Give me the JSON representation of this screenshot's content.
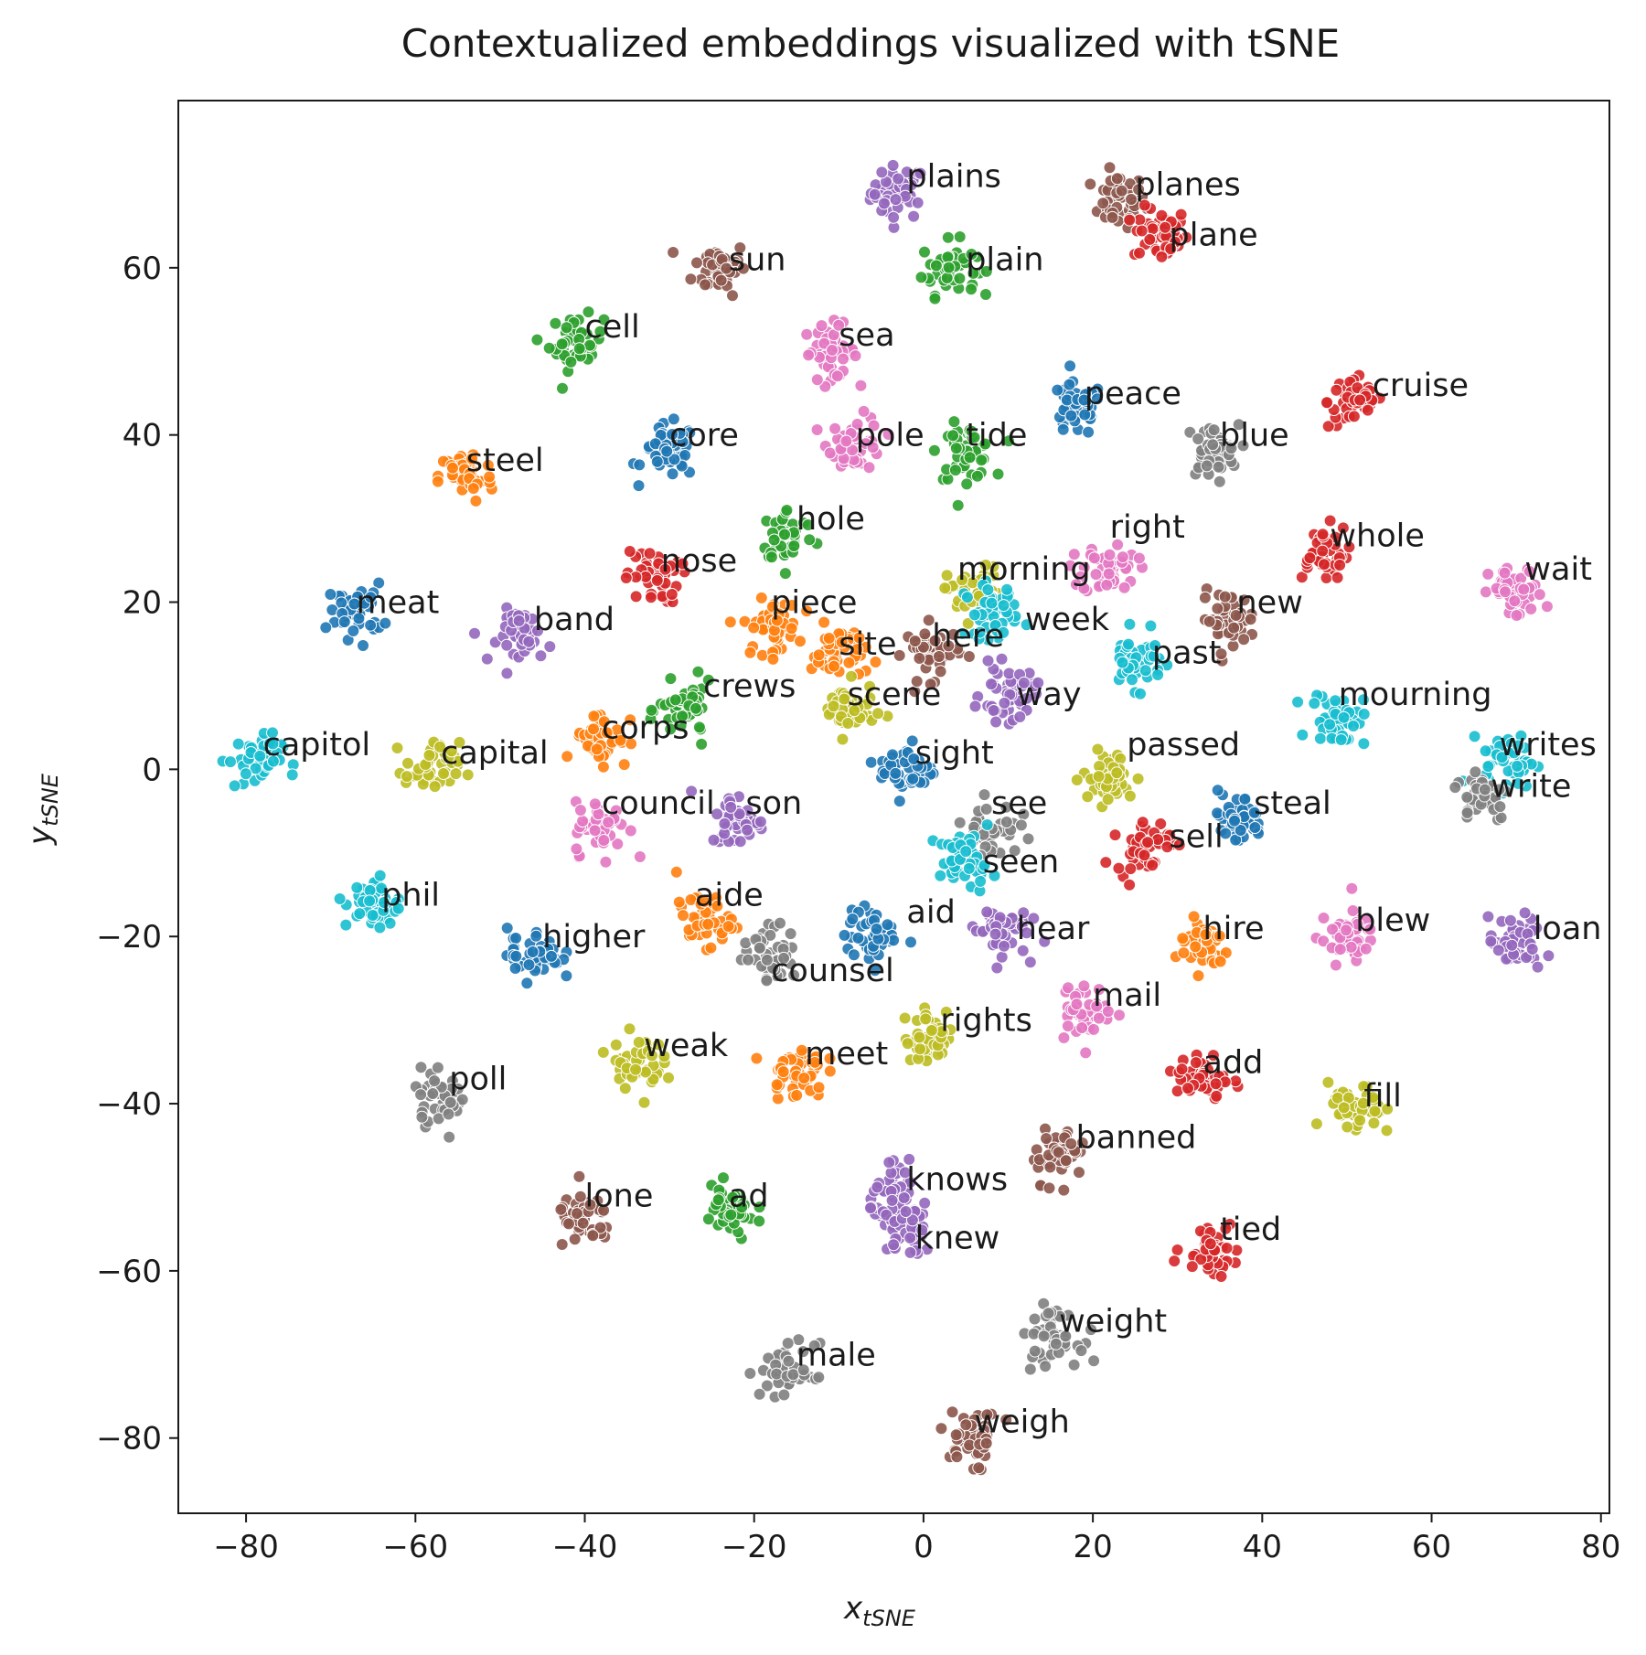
{
  "chart_data": {
    "type": "scatter",
    "title": "Contextualized embeddings visualized with tSNE",
    "xlabel": {
      "base": "x",
      "sub": "tSNE"
    },
    "ylabel": {
      "base": "y",
      "sub": "tSNE"
    },
    "xlim": [
      -88,
      81
    ],
    "ylim": [
      -89,
      80
    ],
    "xticks": [
      -80,
      -60,
      -40,
      -20,
      0,
      20,
      40,
      60,
      80
    ],
    "yticks": [
      -80,
      -60,
      -40,
      -20,
      0,
      20,
      40,
      60
    ],
    "grid": false,
    "legend": "none",
    "palette": [
      "#1f77b4",
      "#ff7f0e",
      "#2ca02c",
      "#d62728",
      "#9467bd",
      "#8c564b",
      "#e377c2",
      "#7f7f7f",
      "#bcbd22",
      "#17becf"
    ],
    "series": [
      {
        "word": "plains",
        "x": -3,
        "y": 69,
        "lx": -2,
        "ly": 71,
        "color": "#9467bd"
      },
      {
        "word": "planes",
        "x": 23,
        "y": 68,
        "lx": 25,
        "ly": 70,
        "color": "#8c564b"
      },
      {
        "word": "plane",
        "x": 28,
        "y": 64,
        "lx": 29,
        "ly": 64,
        "color": "#d62728"
      },
      {
        "word": "sun",
        "x": -24,
        "y": 60,
        "lx": -23,
        "ly": 61,
        "color": "#8c564b"
      },
      {
        "word": "plain",
        "x": 3,
        "y": 60,
        "lx": 5,
        "ly": 61,
        "color": "#2ca02c"
      },
      {
        "word": "cell",
        "x": -41,
        "y": 51,
        "lx": -40,
        "ly": 53,
        "color": "#2ca02c"
      },
      {
        "word": "sea",
        "x": -11,
        "y": 50,
        "lx": -10,
        "ly": 52,
        "color": "#e377c2"
      },
      {
        "word": "cruise",
        "x": 51,
        "y": 44,
        "lx": 53,
        "ly": 46,
        "color": "#d62728"
      },
      {
        "word": "peace",
        "x": 18,
        "y": 43,
        "lx": 19,
        "ly": 45,
        "color": "#1f77b4"
      },
      {
        "word": "core",
        "x": -30,
        "y": 38,
        "lx": -30,
        "ly": 40,
        "color": "#1f77b4"
      },
      {
        "word": "pole",
        "x": -8,
        "y": 39,
        "lx": -8,
        "ly": 40,
        "color": "#e377c2"
      },
      {
        "word": "tide",
        "x": 5,
        "y": 38,
        "lx": 5,
        "ly": 40,
        "color": "#2ca02c"
      },
      {
        "word": "blue",
        "x": 34,
        "y": 38,
        "lx": 35,
        "ly": 40,
        "color": "#7f7f7f"
      },
      {
        "word": "steel",
        "x": -54,
        "y": 35,
        "lx": -54,
        "ly": 37,
        "color": "#ff7f0e"
      },
      {
        "word": "hole",
        "x": -16,
        "y": 28,
        "lx": -15,
        "ly": 30,
        "color": "#2ca02c"
      },
      {
        "word": "right",
        "x": 22,
        "y": 24,
        "lx": 22,
        "ly": 29,
        "color": "#e377c2"
      },
      {
        "word": "whole",
        "x": 47,
        "y": 26,
        "lx": 48,
        "ly": 28,
        "color": "#d62728"
      },
      {
        "word": "nose",
        "x": -32,
        "y": 23,
        "lx": -31,
        "ly": 25,
        "color": "#d62728"
      },
      {
        "word": "morning",
        "x": 6,
        "y": 21,
        "lx": 4,
        "ly": 24,
        "color": "#bcbd22"
      },
      {
        "word": "wait",
        "x": 70,
        "y": 21,
        "lx": 71,
        "ly": 24,
        "color": "#e377c2"
      },
      {
        "word": "meat",
        "x": -67,
        "y": 19,
        "lx": -67,
        "ly": 20,
        "color": "#1f77b4"
      },
      {
        "word": "piece",
        "x": -18,
        "y": 17,
        "lx": -18,
        "ly": 20,
        "color": "#ff7f0e"
      },
      {
        "word": "new",
        "x": 36,
        "y": 18,
        "lx": 37,
        "ly": 20,
        "color": "#8c564b"
      },
      {
        "word": "band",
        "x": -47,
        "y": 16,
        "lx": -46,
        "ly": 18,
        "color": "#9467bd"
      },
      {
        "word": "week",
        "x": 8,
        "y": 19,
        "lx": 12,
        "ly": 18,
        "color": "#17becf"
      },
      {
        "word": "here",
        "x": 1,
        "y": 14,
        "lx": 1,
        "ly": 16,
        "color": "#8c564b"
      },
      {
        "word": "site",
        "x": -10,
        "y": 14,
        "lx": -10,
        "ly": 15,
        "color": "#ff7f0e"
      },
      {
        "word": "past",
        "x": 25,
        "y": 13,
        "lx": 27,
        "ly": 14,
        "color": "#17becf"
      },
      {
        "word": "crews",
        "x": -28,
        "y": 7,
        "lx": -26,
        "ly": 10,
        "color": "#2ca02c"
      },
      {
        "word": "scene",
        "x": -9,
        "y": 7,
        "lx": -9,
        "ly": 9,
        "color": "#bcbd22"
      },
      {
        "word": "way",
        "x": 10,
        "y": 9,
        "lx": 11,
        "ly": 9,
        "color": "#9467bd"
      },
      {
        "word": "mourning",
        "x": 49,
        "y": 6,
        "lx": 49,
        "ly": 9,
        "color": "#17becf"
      },
      {
        "word": "corps",
        "x": -38,
        "y": 4,
        "lx": -38,
        "ly": 5,
        "color": "#ff7f0e"
      },
      {
        "word": "capitol",
        "x": -79,
        "y": 1,
        "lx": -78,
        "ly": 3,
        "color": "#17becf"
      },
      {
        "word": "capital",
        "x": -58,
        "y": 0,
        "lx": -57,
        "ly": 2,
        "color": "#bcbd22"
      },
      {
        "word": "passed",
        "x": 22,
        "y": -1,
        "lx": 24,
        "ly": 3,
        "color": "#bcbd22"
      },
      {
        "word": "writes",
        "x": 69,
        "y": 1,
        "lx": 68,
        "ly": 3,
        "color": "#17becf"
      },
      {
        "word": "sight",
        "x": -2,
        "y": 0,
        "lx": -1,
        "ly": 2,
        "color": "#1f77b4"
      },
      {
        "word": "write",
        "x": 66,
        "y": -3,
        "lx": 67,
        "ly": -2,
        "color": "#7f7f7f"
      },
      {
        "word": "council",
        "x": -38,
        "y": -7,
        "lx": -38,
        "ly": -4,
        "color": "#e377c2"
      },
      {
        "word": "son",
        "x": -22,
        "y": -6,
        "lx": -21,
        "ly": -4,
        "color": "#9467bd"
      },
      {
        "word": "see",
        "x": 8,
        "y": -7,
        "lx": 8,
        "ly": -4,
        "color": "#7f7f7f"
      },
      {
        "word": "steal",
        "x": 37,
        "y": -6,
        "lx": 39,
        "ly": -4,
        "color": "#1f77b4"
      },
      {
        "word": "sell",
        "x": 26,
        "y": -9,
        "lx": 29,
        "ly": -8,
        "color": "#d62728"
      },
      {
        "word": "seen",
        "x": 5,
        "y": -11,
        "lx": 7,
        "ly": -11,
        "color": "#17becf"
      },
      {
        "word": "phil",
        "x": -65,
        "y": -16,
        "lx": -64,
        "ly": -15,
        "color": "#17becf"
      },
      {
        "word": "aide",
        "x": -26,
        "y": -18,
        "lx": -27,
        "ly": -15,
        "color": "#ff7f0e"
      },
      {
        "word": "aid",
        "x": -6,
        "y": -20,
        "lx": -2,
        "ly": -17,
        "color": "#1f77b4"
      },
      {
        "word": "hear",
        "x": 9,
        "y": -19,
        "lx": 11,
        "ly": -19,
        "color": "#9467bd"
      },
      {
        "word": "hire",
        "x": 33,
        "y": -21,
        "lx": 33,
        "ly": -19,
        "color": "#ff7f0e"
      },
      {
        "word": "blew",
        "x": 50,
        "y": -20,
        "lx": 51,
        "ly": -18,
        "color": "#e377c2"
      },
      {
        "word": "loan",
        "x": 70,
        "y": -21,
        "lx": 72,
        "ly": -19,
        "color": "#9467bd"
      },
      {
        "word": "higher",
        "x": -46,
        "y": -22,
        "lx": -45,
        "ly": -20,
        "color": "#1f77b4"
      },
      {
        "word": "counsel",
        "x": -18,
        "y": -22,
        "lx": -18,
        "ly": -24,
        "color": "#7f7f7f"
      },
      {
        "word": "mail",
        "x": 19,
        "y": -29,
        "lx": 20,
        "ly": -27,
        "color": "#e377c2"
      },
      {
        "word": "rights",
        "x": 1,
        "y": -32,
        "lx": 2,
        "ly": -30,
        "color": "#bcbd22"
      },
      {
        "word": "weak",
        "x": -34,
        "y": -35,
        "lx": -33,
        "ly": -33,
        "color": "#bcbd22"
      },
      {
        "word": "meet",
        "x": -15,
        "y": -36,
        "lx": -14,
        "ly": -34,
        "color": "#ff7f0e"
      },
      {
        "word": "add",
        "x": 33,
        "y": -37,
        "lx": 33,
        "ly": -35,
        "color": "#d62728"
      },
      {
        "word": "poll",
        "x": -57,
        "y": -39,
        "lx": -56,
        "ly": -37,
        "color": "#7f7f7f"
      },
      {
        "word": "fill",
        "x": 51,
        "y": -41,
        "lx": 52,
        "ly": -39,
        "color": "#bcbd22"
      },
      {
        "word": "banned",
        "x": 16,
        "y": -46,
        "lx": 18,
        "ly": -44,
        "color": "#8c564b"
      },
      {
        "word": "knows",
        "x": -3,
        "y": -51,
        "lx": -2,
        "ly": -49,
        "color": "#9467bd"
      },
      {
        "word": "lone",
        "x": -40,
        "y": -54,
        "lx": -40,
        "ly": -51,
        "color": "#8c564b"
      },
      {
        "word": "ad",
        "x": -23,
        "y": -53,
        "lx": -23,
        "ly": -51,
        "color": "#2ca02c"
      },
      {
        "word": "knew",
        "x": -2,
        "y": -55,
        "lx": -1,
        "ly": -56,
        "color": "#9467bd"
      },
      {
        "word": "tied",
        "x": 34,
        "y": -57,
        "lx": 35,
        "ly": -55,
        "color": "#d62728"
      },
      {
        "word": "weight",
        "x": 15,
        "y": -68,
        "lx": 16,
        "ly": -66,
        "color": "#7f7f7f"
      },
      {
        "word": "male",
        "x": -16,
        "y": -72,
        "lx": -15,
        "ly": -70,
        "color": "#7f7f7f"
      },
      {
        "word": "weigh",
        "x": 6,
        "y": -80,
        "lx": 6,
        "ly": -78,
        "color": "#8c564b"
      }
    ]
  }
}
